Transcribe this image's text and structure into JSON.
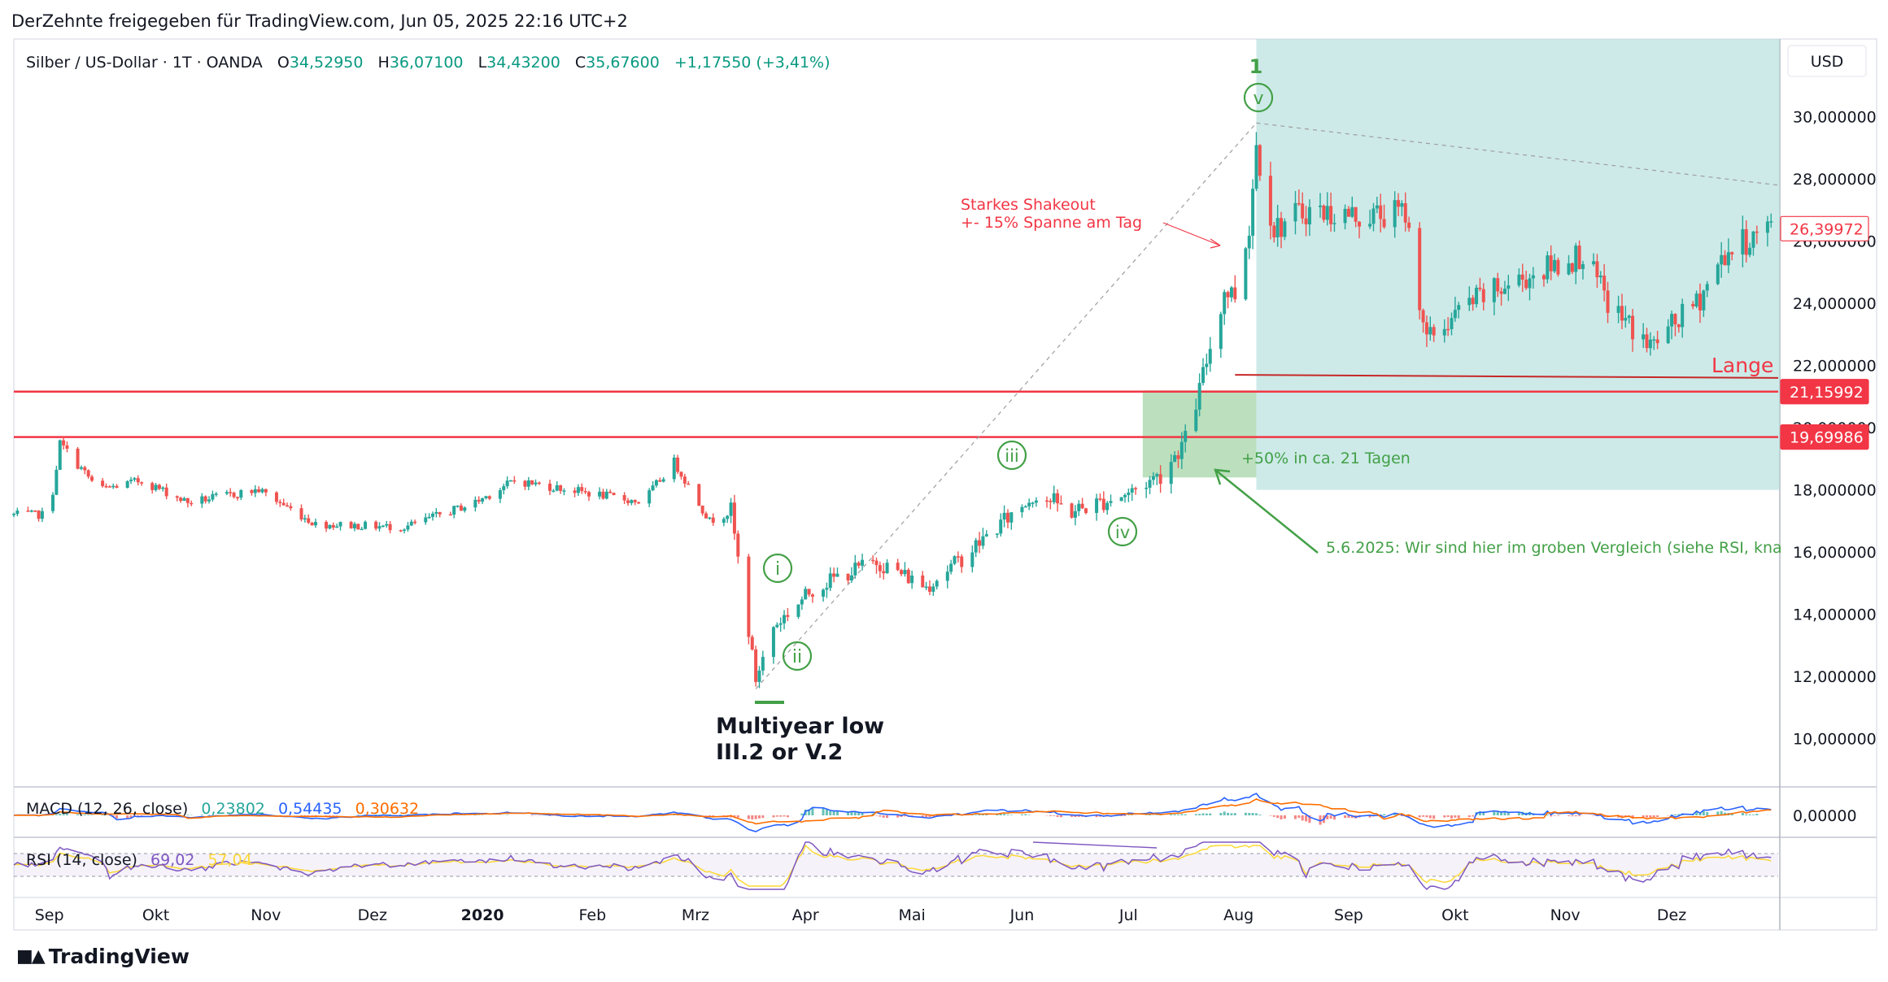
{
  "header": {
    "share_text": "DerZehnte freigegeben für TradingView.com, Jun 05, 2025 22:16 UTC+2"
  },
  "footer": {
    "brand": "TradingView"
  },
  "legend": {
    "symbol": "Silber / US-Dollar · 1T · OANDA",
    "o_label": "O",
    "o_value": "34,52950",
    "h_label": "H",
    "h_value": "36,07100",
    "l_label": "L",
    "l_value": "34,43200",
    "c_label": "C",
    "c_value": "35,67600",
    "change": "+1,17550 (+3,41%)"
  },
  "currency_button": "USD",
  "colors": {
    "up": "#26a69a",
    "down": "#ef5350",
    "hline": "#f23645",
    "zone_blue": "#b2dfdb",
    "zone_green": "#a5d6a7",
    "annotation_green": "#43a047",
    "annotation_red": "#f23645",
    "macd_line": "#2962ff",
    "signal_line": "#ff6d00",
    "rsi_line": "#7e57c2",
    "rsi_ma": "#fdd835"
  },
  "chart_data": {
    "type": "candlestick",
    "title": "Silber / US-Dollar · 1T · OANDA",
    "ylim": [
      8.5,
      32.5
    ],
    "y_axis_ticks": [
      "30,000000",
      "28,000000",
      "26,000000",
      "24,000000",
      "22,000000",
      "20,000000",
      "18,000000",
      "16,000000",
      "14,000000",
      "12,000000",
      "10,000000"
    ],
    "x_axis_ticks": [
      "Sep",
      "Okt",
      "Nov",
      "Dez",
      "2020",
      "Feb",
      "Mrz",
      "Apr",
      "Mai",
      "Jun",
      "Jul",
      "Aug",
      "Sep",
      "Okt",
      "Nov",
      "Dez"
    ],
    "price_path": [
      [
        "2019-09-01",
        17.2
      ],
      [
        "2019-09-04",
        19.5
      ],
      [
        "2019-09-15",
        18.0
      ],
      [
        "2019-09-27",
        18.3
      ],
      [
        "2019-10-10",
        17.6
      ],
      [
        "2019-10-30",
        18.0
      ],
      [
        "2019-11-15",
        16.9
      ],
      [
        "2019-12-10",
        16.8
      ],
      [
        "2019-12-30",
        17.6
      ],
      [
        "2020-01-10",
        18.3
      ],
      [
        "2020-01-31",
        17.9
      ],
      [
        "2020-02-15",
        17.6
      ],
      [
        "2020-02-24",
        18.9
      ],
      [
        "2020-03-05",
        17.0
      ],
      [
        "2020-03-11",
        17.3
      ],
      [
        "2020-03-18",
        11.9
      ],
      [
        "2020-03-23",
        13.6
      ],
      [
        "2020-04-03",
        14.8
      ],
      [
        "2020-04-10",
        15.2
      ],
      [
        "2020-04-21",
        15.7
      ],
      [
        "2020-05-05",
        14.9
      ],
      [
        "2020-05-15",
        15.8
      ],
      [
        "2020-06-05",
        17.9
      ],
      [
        "2020-06-15",
        17.3
      ],
      [
        "2020-07-01",
        17.9
      ],
      [
        "2020-07-10",
        18.5
      ],
      [
        "2020-07-17",
        19.6
      ],
      [
        "2020-07-21",
        21.2
      ],
      [
        "2020-07-25",
        23.1
      ],
      [
        "2020-07-28",
        24.4
      ],
      [
        "2020-07-31",
        24.3
      ],
      [
        "2020-08-04",
        26.5
      ],
      [
        "2020-08-06",
        29.1
      ],
      [
        "2020-08-11",
        26.4
      ],
      [
        "2020-08-20",
        27.0
      ],
      [
        "2020-09-04",
        26.8
      ],
      [
        "2020-09-17",
        26.9
      ],
      [
        "2020-09-23",
        22.8
      ],
      [
        "2020-10-05",
        24.0
      ],
      [
        "2020-10-20",
        24.8
      ],
      [
        "2020-11-06",
        25.6
      ],
      [
        "2020-11-13",
        24.0
      ],
      [
        "2020-11-25",
        22.6
      ],
      [
        "2020-12-08",
        24.0
      ],
      [
        "2020-12-16",
        25.6
      ],
      [
        "2020-12-28",
        26.4
      ]
    ],
    "last_close": 26.39972,
    "price_labels": [
      {
        "label": "26,39972",
        "value": 26.39972
      },
      {
        "label": "21,15992",
        "value": 21.15992
      },
      {
        "label": "19,69986",
        "value": 19.69986
      }
    ],
    "horizontal_lines": [
      21.15992,
      19.69986
    ],
    "macd": {
      "label": "MACD (12, 26, close)",
      "values": [
        "0,23802",
        "0,54435",
        "0,30632"
      ],
      "axis_label": "0,00000"
    },
    "rsi": {
      "label": "RSI (14, close)",
      "values": [
        "69,02",
        "57,04"
      ]
    }
  },
  "annotations": {
    "wave_1": "1",
    "wave_v": "v",
    "wave_i": "i",
    "wave_ii": "ii",
    "wave_iii": "iii",
    "wave_iv": "iv",
    "shakeout_line1": "Starkes Shakeout",
    "shakeout_line2": "+- 15% Spanne am Tag",
    "multiyear_line1": "Multiyear low",
    "multiyear_line2": "III.2 or V.2",
    "gain": "+50% in ca. 21 Tagen",
    "note": "5.6.2025: Wir sind hier im groben Vergleich (siehe RSI, kna",
    "lange": "Lange"
  }
}
